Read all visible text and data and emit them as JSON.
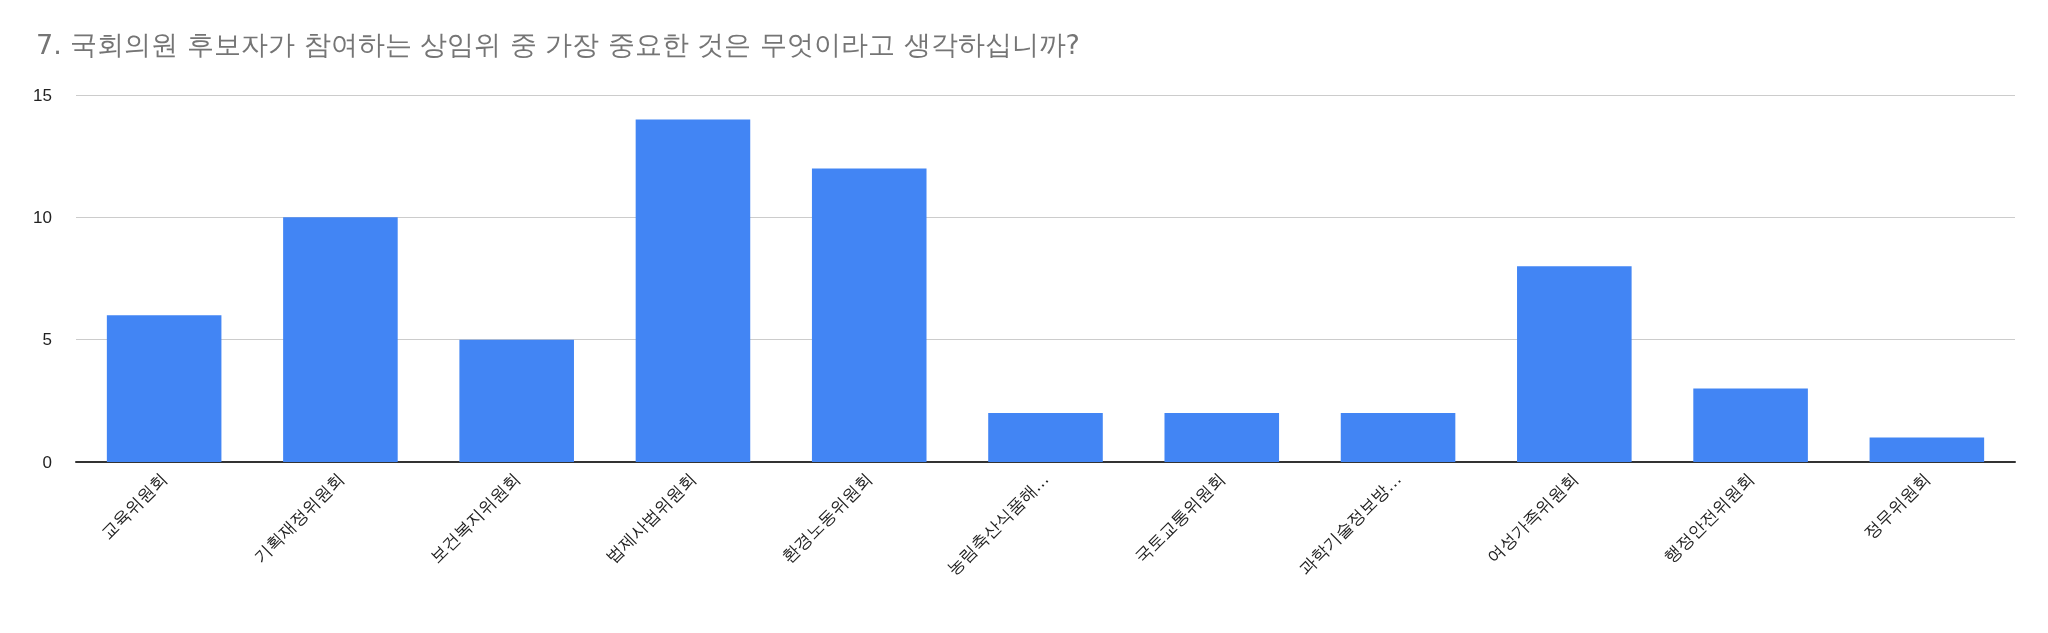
{
  "chart_data": {
    "type": "bar",
    "title": "7. 국회의원 후보자가 참여하는 상임위 중 가장 중요한 것은 무엇이라고 생각하십니까?",
    "categories": [
      "교육위원회",
      "기획재정위원회",
      "보건복지위원회",
      "법제사법위원회",
      "환경노동위원회",
      "농림축산식품해…",
      "국토교통위원회",
      "과학기술정보방…",
      "여성가족위원회",
      "행정안전위원회",
      "정무위원회"
    ],
    "values": [
      6,
      10,
      5,
      14,
      12,
      2,
      2,
      2,
      8,
      3,
      1
    ],
    "color": "#4285f4",
    "ylim": [
      0,
      15
    ],
    "yticks": [
      0,
      5,
      10,
      15
    ],
    "grid": "y"
  }
}
